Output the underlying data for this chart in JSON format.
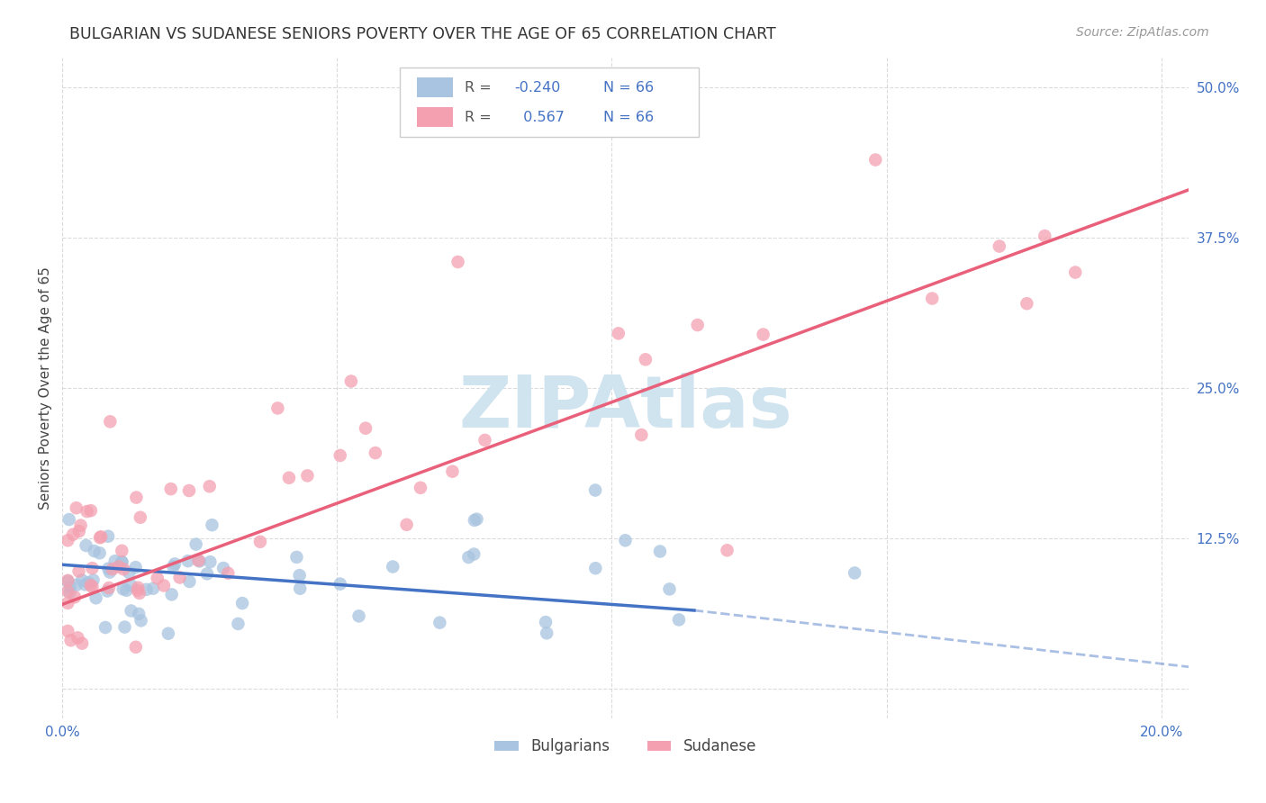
{
  "title": "BULGARIAN VS SUDANESE SENIORS POVERTY OVER THE AGE OF 65 CORRELATION CHART",
  "source": "Source: ZipAtlas.com",
  "ylabel": "Seniors Poverty Over the Age of 65",
  "xlim": [
    0.0,
    0.205
  ],
  "ylim": [
    -0.025,
    0.525
  ],
  "xticks": [
    0.0,
    0.05,
    0.1,
    0.15,
    0.2
  ],
  "xticklabels": [
    "0.0%",
    "",
    "",
    "",
    "20.0%"
  ],
  "yticks": [
    0.0,
    0.125,
    0.25,
    0.375,
    0.5
  ],
  "yticklabels": [
    "",
    "12.5%",
    "25.0%",
    "37.5%",
    "50.0%"
  ],
  "bulgarian_R": -0.24,
  "sudanese_R": 0.567,
  "N": 66,
  "bulgarian_color": "#a8c4e0",
  "sudanese_color": "#f4a0b0",
  "bulgarian_line_color": "#4472c4",
  "sudanese_line_color": "#e8607a",
  "watermark": "ZIPAtlas",
  "watermark_color": "#d0e4f0",
  "bg_color": "#ffffff",
  "grid_color": "#cccccc",
  "title_color": "#333333",
  "axis_label_color": "#444444",
  "tick_color": "#4472c4",
  "legend_label1": "Bulgarians",
  "legend_label2": "Sudanese",
  "bg_line_x0": 0.0,
  "bg_line_y0": 0.103,
  "bg_line_x1": 0.115,
  "bg_line_y1": 0.065,
  "bg_line_x1d": 0.115,
  "bg_line_y1d": 0.065,
  "bg_line_x2d": 0.205,
  "bg_line_y2d": 0.018,
  "sd_line_x0": 0.0,
  "sd_line_y0": 0.07,
  "sd_line_x1": 0.205,
  "sd_line_y1": 0.415
}
